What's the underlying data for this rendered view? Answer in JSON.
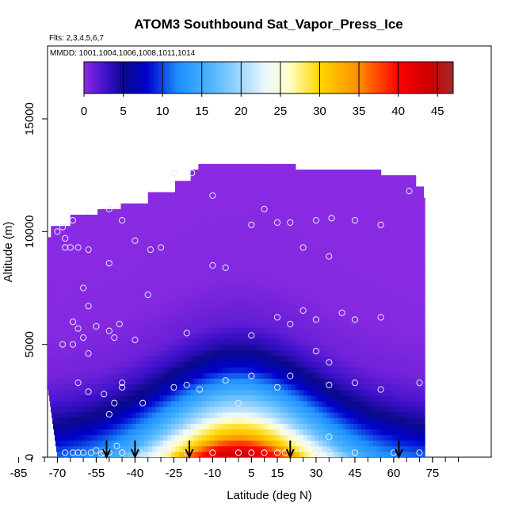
{
  "chart_data": {
    "type": "heatmap",
    "title": "ATOM3 Southbound Sat_Vapor_Press_Ice",
    "subtitle_flights": "Flts: 2,3,4,5,6,7",
    "subtitle_dates": "MMDD: 1001,1004,1006,1008,1011,1014",
    "xlabel": "Latitude (deg N)",
    "ylabel": "Altitude (m)",
    "xlim": [
      -85,
      85
    ],
    "ylim": [
      0,
      17500
    ],
    "x_ticks": [
      "-85",
      "-70",
      "-55",
      "-40",
      "-25",
      "-10",
      "5",
      "15",
      "30",
      "45",
      "60",
      "75"
    ],
    "x_tick_values": [
      -85,
      -70,
      -55,
      -40,
      -25,
      -10,
      5,
      15,
      30,
      45,
      60,
      75
    ],
    "y_ticks": [
      "0",
      "5000",
      "10000",
      "15000"
    ],
    "y_tick_values": [
      0,
      5000,
      10000,
      15000
    ],
    "colorbar": {
      "min": 0,
      "max": 47,
      "tick_labels": [
        "0",
        "5",
        "10",
        "15",
        "20",
        "25",
        "30",
        "35",
        "40",
        "45"
      ],
      "tick_values": [
        0,
        5,
        10,
        15,
        20,
        25,
        30,
        35,
        40,
        45
      ],
      "color_stops": [
        {
          "value": 0,
          "color": "#8a2be2"
        },
        {
          "value": 3,
          "color": "#3a10c8"
        },
        {
          "value": 5,
          "color": "#0a0a8a"
        },
        {
          "value": 8,
          "color": "#0000cd"
        },
        {
          "value": 12,
          "color": "#1e90ff"
        },
        {
          "value": 16,
          "color": "#4db3ff"
        },
        {
          "value": 20,
          "color": "#a0d8ff"
        },
        {
          "value": 23,
          "color": "#eaf6ff"
        },
        {
          "value": 26,
          "color": "#ffffcc"
        },
        {
          "value": 30,
          "color": "#ffd700"
        },
        {
          "value": 35,
          "color": "#ff8c00"
        },
        {
          "value": 40,
          "color": "#ff0000"
        },
        {
          "value": 44,
          "color": "#cc0000"
        },
        {
          "value": 47,
          "color": "#a52a2a"
        }
      ]
    },
    "coverage_top_altitude": [
      {
        "lat": -84,
        "alt": 9700
      },
      {
        "lat": -72,
        "alt": 10200
      },
      {
        "lat": -65,
        "alt": 10600
      },
      {
        "lat": -55,
        "alt": 10900
      },
      {
        "lat": -45,
        "alt": 11200
      },
      {
        "lat": -35,
        "alt": 11600
      },
      {
        "lat": -25,
        "alt": 12100
      },
      {
        "lat": -18,
        "alt": 12600
      },
      {
        "lat": -15,
        "alt": 13000
      },
      {
        "lat": 18,
        "alt": 13000
      },
      {
        "lat": 22,
        "alt": 12600
      },
      {
        "lat": 45,
        "alt": 12600
      },
      {
        "lat": 55,
        "alt": 12300
      },
      {
        "lat": 68,
        "alt": 11800
      },
      {
        "lat": 72,
        "alt": 11400
      }
    ],
    "coverage_bottom_left": [
      {
        "lat": -84,
        "alt": 9700
      },
      {
        "lat": -76,
        "alt": 5000
      },
      {
        "lat": -70,
        "alt": 0
      }
    ],
    "coverage_right_lat": 72,
    "field_model": {
      "description_levels_by_altitude_at_equator": [
        {
          "alt": 0,
          "value": 45
        },
        {
          "alt": 500,
          "value": 40
        },
        {
          "alt": 1000,
          "value": 32
        },
        {
          "alt": 1500,
          "value": 28
        },
        {
          "alt": 2000,
          "value": 22
        },
        {
          "alt": 3000,
          "value": 15
        },
        {
          "alt": 4000,
          "value": 8
        },
        {
          "alt": 5000,
          "value": 4
        },
        {
          "alt": 6000,
          "value": 1.5
        },
        {
          "alt": 8000,
          "value": 0.3
        },
        {
          "alt": 13000,
          "value": 0
        }
      ]
    },
    "arrows_lat": [
      -51,
      -40,
      -19,
      20,
      62
    ],
    "sample_points": [
      [
        -78,
        10000
      ],
      [
        -70,
        10000
      ],
      [
        -68,
        10200
      ],
      [
        -64,
        10500
      ],
      [
        -67,
        9700
      ],
      [
        -67,
        9300
      ],
      [
        -65,
        9300
      ],
      [
        -62,
        9300
      ],
      [
        -58,
        10900
      ],
      [
        -50,
        11000
      ],
      [
        -45,
        10500
      ],
      [
        -40,
        9600
      ],
      [
        -34,
        9200
      ],
      [
        -30,
        9300
      ],
      [
        -25,
        12600
      ],
      [
        -18,
        12600
      ],
      [
        -10,
        11600
      ],
      [
        5,
        10300
      ],
      [
        10,
        11000
      ],
      [
        15,
        10400
      ],
      [
        20,
        10400
      ],
      [
        30,
        10500
      ],
      [
        36,
        10600
      ],
      [
        45,
        10500
      ],
      [
        55,
        10300
      ],
      [
        66,
        11800
      ],
      [
        -58,
        9200
      ],
      [
        -50,
        8600
      ],
      [
        -35,
        7200
      ],
      [
        -10,
        8500
      ],
      [
        -5,
        8400
      ],
      [
        25,
        9300
      ],
      [
        35,
        8900
      ],
      [
        -60,
        7500
      ],
      [
        -58,
        6700
      ],
      [
        -64,
        6000
      ],
      [
        -62,
        5700
      ],
      [
        -60,
        5300
      ],
      [
        -58,
        4600
      ],
      [
        -64,
        5000
      ],
      [
        -68,
        5000
      ],
      [
        -55,
        5800
      ],
      [
        -50,
        5600
      ],
      [
        -46,
        5900
      ],
      [
        -48,
        5300
      ],
      [
        -40,
        5200
      ],
      [
        -20,
        5500
      ],
      [
        5,
        5400
      ],
      [
        15,
        6200
      ],
      [
        20,
        5900
      ],
      [
        25,
        6500
      ],
      [
        30,
        6100
      ],
      [
        40,
        6400
      ],
      [
        45,
        6100
      ],
      [
        55,
        6200
      ],
      [
        30,
        4700
      ],
      [
        35,
        4200
      ],
      [
        -62,
        3300
      ],
      [
        -58,
        2900
      ],
      [
        -52,
        2800
      ],
      [
        -48,
        2400
      ],
      [
        -50,
        1900
      ],
      [
        -45,
        3300
      ],
      [
        -45,
        3100
      ],
      [
        -37,
        2400
      ],
      [
        -25,
        3100
      ],
      [
        -20,
        3200
      ],
      [
        -15,
        3000
      ],
      [
        -5,
        3400
      ],
      [
        5,
        3600
      ],
      [
        15,
        3100
      ],
      [
        20,
        3600
      ],
      [
        35,
        3200
      ],
      [
        45,
        3300
      ],
      [
        55,
        3000
      ],
      [
        70,
        3300
      ],
      [
        0,
        2400
      ],
      [
        -67,
        200
      ],
      [
        -64,
        200
      ],
      [
        -62,
        200
      ],
      [
        -60,
        200
      ],
      [
        -57,
        200
      ],
      [
        -55,
        300
      ],
      [
        -52,
        200
      ],
      [
        -50,
        200
      ],
      [
        -45,
        200
      ],
      [
        -38,
        200
      ],
      [
        -28,
        200
      ],
      [
        -20,
        200
      ],
      [
        -10,
        200
      ],
      [
        0,
        200
      ],
      [
        5,
        200
      ],
      [
        10,
        200
      ],
      [
        15,
        200
      ],
      [
        18,
        200
      ],
      [
        25,
        200
      ],
      [
        30,
        200
      ],
      [
        35,
        200
      ],
      [
        35,
        900
      ],
      [
        45,
        200
      ],
      [
        60,
        200
      ],
      [
        70,
        200
      ],
      [
        -53,
        150
      ],
      [
        -47,
        500
      ]
    ]
  }
}
